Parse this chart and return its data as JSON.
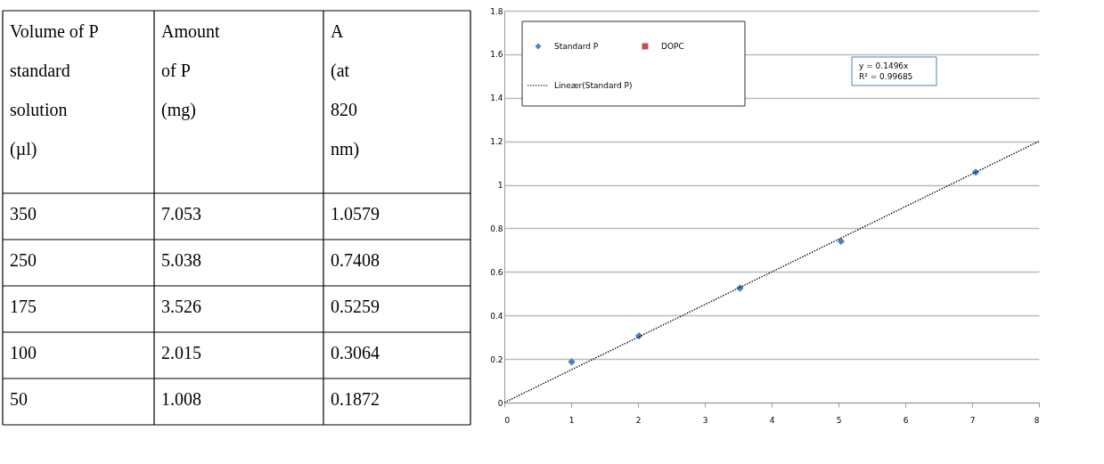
{
  "chart_data": [
    {
      "type": "other",
      "categories": [
        "Volume of P standard solution (µl)",
        "Amount of P (mg)",
        "A (at 820 nm)"
      ],
      "annotations": [
        "350",
        "7.053",
        "1.0579",
        "250",
        "5.038",
        "0.7408",
        "175",
        "3.526",
        "0.5259",
        "100",
        "2.015",
        "0.3064",
        "50",
        "1.008",
        "0.1872"
      ]
    },
    {
      "type": "scatter",
      "xlim": [
        0,
        8
      ],
      "ylim": [
        0,
        1.8
      ],
      "xticks": [
        0,
        1,
        2,
        3,
        4,
        5,
        6,
        7,
        8
      ],
      "yticks": [
        0,
        0.2,
        0.4,
        0.6,
        0.8,
        1,
        1.2,
        1.4,
        1.6,
        1.8
      ],
      "grid": "y",
      "legend": "top left",
      "annotations": [
        "y = 0.1496x",
        "R² = 0.99685"
      ],
      "series": [
        {
          "name": "Standard P",
          "type": "scatter",
          "marker": "diamond",
          "color": "#4f81bd",
          "x": [
            1.008,
            2.015,
            3.526,
            5.038,
            7.053
          ],
          "values": [
            0.1872,
            0.3064,
            0.5259,
            0.7408,
            1.0579
          ]
        },
        {
          "name": "DOPC",
          "type": "scatter",
          "marker": "square",
          "color": "#c0504d"
        },
        {
          "name": "Lineær(Standard P)",
          "type": "line",
          "line_style": "dotted",
          "color": "#000000",
          "x": [
            0,
            8
          ],
          "values": [
            0,
            1.2
          ]
        }
      ]
    }
  ]
}
